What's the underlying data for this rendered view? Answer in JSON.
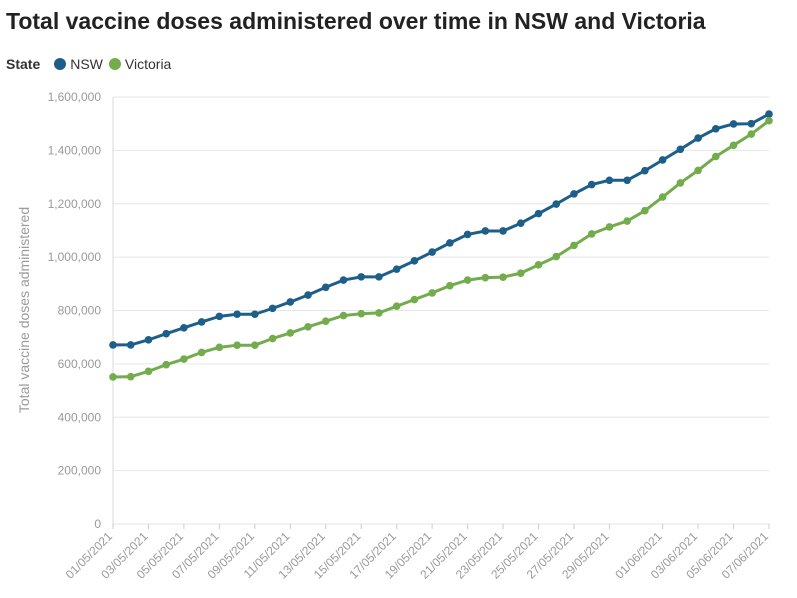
{
  "chart_data": {
    "type": "line",
    "title": "Total vaccine doses administered over time in NSW and Victoria",
    "legend_title": "State",
    "legend_position": "top-left",
    "ylabel": "Total vaccine doses administered",
    "xlabel": "",
    "ylim": [
      0,
      1600000
    ],
    "y_ticks": [
      0,
      200000,
      400000,
      600000,
      800000,
      1000000,
      1200000,
      1400000,
      1600000
    ],
    "y_tick_labels": [
      "0",
      "200,000",
      "400,000",
      "600,000",
      "800,000",
      "1,000,000",
      "1,200,000",
      "1,400,000",
      "1,600,000"
    ],
    "grid": true,
    "x": [
      "01/05/2021",
      "02/05/2021",
      "03/05/2021",
      "04/05/2021",
      "05/05/2021",
      "06/05/2021",
      "07/05/2021",
      "08/05/2021",
      "09/05/2021",
      "10/05/2021",
      "11/05/2021",
      "12/05/2021",
      "13/05/2021",
      "14/05/2021",
      "15/05/2021",
      "16/05/2021",
      "17/05/2021",
      "18/05/2021",
      "19/05/2021",
      "20/05/2021",
      "21/05/2021",
      "22/05/2021",
      "23/05/2021",
      "24/05/2021",
      "25/05/2021",
      "26/05/2021",
      "27/05/2021",
      "28/05/2021",
      "29/05/2021",
      "30/05/2021",
      "31/05/2021",
      "01/06/2021",
      "02/06/2021",
      "03/06/2021",
      "04/06/2021",
      "05/06/2021",
      "06/06/2021",
      "07/06/2021"
    ],
    "x_tick_labels": [
      "01/05/2021",
      "03/05/2021",
      "05/05/2021",
      "07/05/2021",
      "09/05/2021",
      "11/05/2021",
      "13/05/2021",
      "15/05/2021",
      "17/05/2021",
      "19/05/2021",
      "21/05/2021",
      "23/05/2021",
      "25/05/2021",
      "27/05/2021",
      "29/05/2021",
      "01/06/2021",
      "03/06/2021",
      "05/06/2021",
      "07/06/2021"
    ],
    "series": [
      {
        "name": "NSW",
        "color": "#1d5f8a",
        "values": [
          671000,
          671000,
          690000,
          713000,
          735000,
          757000,
          778000,
          786000,
          786000,
          808000,
          832000,
          858000,
          887000,
          914000,
          926000,
          926000,
          955000,
          986000,
          1019000,
          1053000,
          1085000,
          1098000,
          1098000,
          1127000,
          1163000,
          1199000,
          1237000,
          1272000,
          1288000,
          1288000,
          1324000,
          1364000,
          1404000,
          1446000,
          1481000,
          1499000,
          1500000,
          1536000
        ]
      },
      {
        "name": "Victoria",
        "color": "#72ac4d",
        "values": [
          551000,
          552000,
          572000,
          597000,
          618000,
          643000,
          662000,
          670000,
          670000,
          695000,
          716000,
          739000,
          760000,
          781000,
          788000,
          791000,
          816000,
          841000,
          866000,
          893000,
          914000,
          923000,
          925000,
          940000,
          971000,
          1002000,
          1044000,
          1087000,
          1113000,
          1135000,
          1174000,
          1225000,
          1278000,
          1325000,
          1377000,
          1419000,
          1461000,
          1511000
        ]
      }
    ]
  }
}
